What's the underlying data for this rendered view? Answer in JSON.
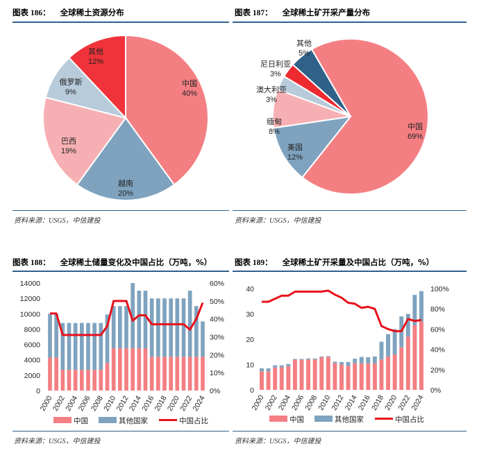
{
  "panels": [
    {
      "label": "图表 186：",
      "title": "全球稀土资源分布",
      "source": "资料来源：USGS，中信建投"
    },
    {
      "label": "图表 187：",
      "title": "全球稀土矿开采产量分布",
      "source": "资料来源：USGS，中信建投"
    },
    {
      "label": "图表 188：",
      "title": "全球稀土储量变化及中国占比（万吨，%）",
      "source": "资料来源：USGS，中信建投"
    },
    {
      "label": "图表 189：",
      "title": "全球稀土矿开采量及中国占比（万吨，%）",
      "source": "资料来源：USGS，中信建投"
    }
  ],
  "chart_data": [
    {
      "type": "pie",
      "title": "全球稀土资源分布",
      "slices": [
        {
          "name": "中国",
          "value": 40,
          "label": "40%",
          "color": "#f47f83"
        },
        {
          "name": "越南",
          "value": 20,
          "label": "20%",
          "color": "#7fa3bf"
        },
        {
          "name": "巴西",
          "value": 19,
          "label": "19%",
          "color": "#f6b0b3"
        },
        {
          "name": "俄罗斯",
          "value": 9,
          "label": "9%",
          "color": "#b7cbdb"
        },
        {
          "name": "其他",
          "value": 12,
          "label": "12%",
          "color": "#f0333a"
        }
      ]
    },
    {
      "type": "pie",
      "title": "全球稀土矿开采产量分布",
      "slices": [
        {
          "name": "中国",
          "value": 69,
          "label": "69%",
          "color": "#f47f83"
        },
        {
          "name": "美国",
          "value": 12,
          "label": "12%",
          "color": "#7fa3bf"
        },
        {
          "name": "缅甸",
          "value": 8,
          "label": "8%",
          "color": "#f6b0b3"
        },
        {
          "name": "澳大利亚",
          "value": 3,
          "label": "3%",
          "color": "#b7cbdb"
        },
        {
          "name": "尼日利亚",
          "value": 3,
          "label": "3%",
          "color": "#ee2a31"
        },
        {
          "name": "其他",
          "value": 5,
          "label": "5%",
          "color": "#2f6189"
        }
      ]
    },
    {
      "type": "bar",
      "stacked": true,
      "title": "全球稀土储量变化及中国占比（万吨，%）",
      "categories": [
        "2000",
        "2001",
        "2002",
        "2003",
        "2004",
        "2005",
        "2006",
        "2007",
        "2008",
        "2009",
        "2010",
        "2011",
        "2012",
        "2013",
        "2014",
        "2015",
        "2016",
        "2017",
        "2018",
        "2019",
        "2020",
        "2021",
        "2022",
        "2023",
        "2024"
      ],
      "x_tick_labels": [
        "2000",
        "2002",
        "2004",
        "2006",
        "2008",
        "2010",
        "2012",
        "2014",
        "2016",
        "2018",
        "2020",
        "2022",
        "2024"
      ],
      "ylim": [
        0,
        14000
      ],
      "y_ticks": [
        "0",
        "2000",
        "4000",
        "6000",
        "8000",
        "10000",
        "12000",
        "14000"
      ],
      "y2lim": [
        0,
        60
      ],
      "y2_ticks": [
        "0%",
        "10%",
        "20%",
        "30%",
        "40%",
        "50%",
        "60%"
      ],
      "series": [
        {
          "name": "中国",
          "kind": "bar",
          "color": "#f47f83",
          "values": [
            4300,
            4300,
            2700,
            2700,
            2700,
            2700,
            2700,
            2700,
            2700,
            3600,
            5500,
            5500,
            5500,
            5500,
            5500,
            5500,
            4400,
            4400,
            4400,
            4400,
            4400,
            4400,
            4400,
            4400,
            4400
          ]
        },
        {
          "name": "其他国家",
          "kind": "bar",
          "color": "#7fa3bf",
          "values": [
            5700,
            5700,
            6100,
            6100,
            6100,
            6100,
            6100,
            6100,
            6100,
            6300,
            5500,
            5500,
            5500,
            8500,
            7500,
            7500,
            7600,
            7600,
            7600,
            7600,
            7600,
            7600,
            8600,
            6600,
            4600
          ]
        },
        {
          "name": "中国占比",
          "kind": "line",
          "axis": "right",
          "color": "#e8111b",
          "values": [
            43,
            43,
            31,
            31,
            31,
            31,
            31,
            31,
            31,
            36,
            50,
            50,
            50,
            39,
            42,
            42,
            37,
            37,
            37,
            37,
            37,
            37,
            34,
            40,
            49
          ]
        }
      ],
      "legend": "bottom"
    },
    {
      "type": "bar",
      "stacked": true,
      "title": "全球稀土矿开采量及中国占比（万吨，%）",
      "categories": [
        "2000",
        "2001",
        "2002",
        "2003",
        "2004",
        "2005",
        "2006",
        "2007",
        "2008",
        "2009",
        "2010",
        "2011",
        "2012",
        "2013",
        "2014",
        "2015",
        "2016",
        "2017",
        "2018",
        "2019",
        "2020",
        "2021",
        "2022",
        "2023",
        "2024"
      ],
      "x_tick_labels": [
        "2000",
        "2002",
        "2004",
        "2006",
        "2008",
        "2010",
        "2012",
        "2014",
        "2016",
        "2018",
        "2020",
        "2022",
        "2024"
      ],
      "ylim": [
        0,
        40
      ],
      "y_ticks": [
        "0",
        "10",
        "20",
        "30",
        "40"
      ],
      "y2lim": [
        0,
        100
      ],
      "y2_ticks": [
        "0%",
        "20%",
        "40%",
        "60%",
        "80%",
        "100%"
      ],
      "series": [
        {
          "name": "中国",
          "kind": "bar",
          "color": "#f47f83",
          "values": [
            7.3,
            7.3,
            8.8,
            8.9,
            9.3,
            11.9,
            11.9,
            12.0,
            12.0,
            12.9,
            13.0,
            10.5,
            10.0,
            9.4,
            10.5,
            10.5,
            10.5,
            10.5,
            12.0,
            13.2,
            14.0,
            16.8,
            21.0,
            25.5,
            27.0
          ]
        },
        {
          "name": "其他国家",
          "kind": "bar",
          "color": "#7fa3bf",
          "values": [
            1.2,
            1.2,
            0.9,
            0.8,
            0.9,
            0.3,
            0.3,
            0.4,
            0.4,
            0.3,
            0.3,
            0.6,
            1.0,
            1.6,
            1.8,
            2.5,
            2.4,
            2.7,
            7.0,
            8.8,
            10.0,
            12.2,
            9.0,
            12.0,
            12.0
          ]
        },
        {
          "name": "中国占比",
          "kind": "line",
          "axis": "right",
          "color": "#e8111b",
          "values": [
            87,
            87,
            90,
            93,
            93,
            97,
            97,
            97,
            97,
            97,
            98,
            94,
            91,
            86,
            85,
            81,
            82,
            80,
            63,
            60,
            58,
            58,
            70,
            68,
            69
          ]
        }
      ],
      "legend": "bottom"
    }
  ]
}
